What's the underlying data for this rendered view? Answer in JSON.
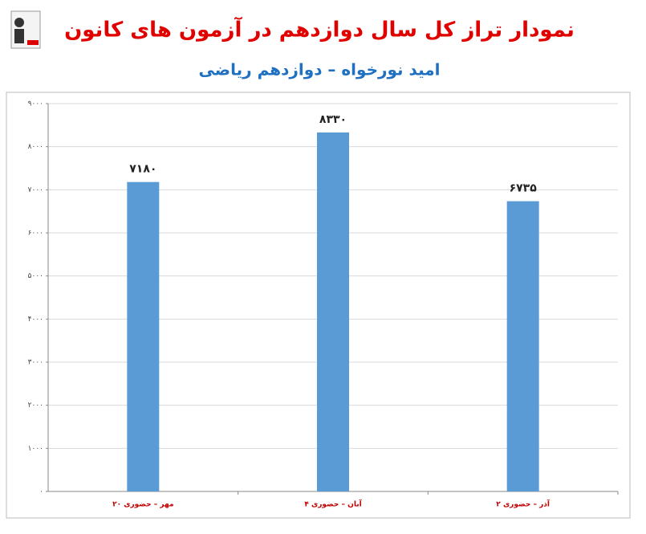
{
  "chart_data": {
    "type": "bar",
    "title": "نمودار تراز کل سال دوازدهم در آزمون های کانون",
    "subtitle": "امید نورخواه – دوازدهم ریاضی",
    "categories": [
      "۲۰ مهر – حضوری",
      "۴ آبان – حضوری",
      "۲ آذر – حضوری"
    ],
    "values": [
      7180,
      8330,
      6735
    ],
    "value_labels": [
      "۷۱۸۰",
      "۸۳۳۰",
      "۶۷۳۵"
    ],
    "color": "#5b9bd5",
    "ylim": [
      0,
      9000
    ],
    "yticks": [
      {
        "value": 0,
        "label": "۰"
      },
      {
        "value": 1000,
        "label": "۱۰۰۰"
      },
      {
        "value": 2000,
        "label": "۲۰۰۰"
      },
      {
        "value": 3000,
        "label": "۳۰۰۰"
      },
      {
        "value": 4000,
        "label": "۴۰۰۰"
      },
      {
        "value": 5000,
        "label": "۵۰۰۰"
      },
      {
        "value": 6000,
        "label": "۶۰۰۰"
      },
      {
        "value": 7000,
        "label": "۷۰۰۰"
      },
      {
        "value": 8000,
        "label": "۸۰۰۰"
      },
      {
        "value": 9000,
        "label": "۹۰۰۰"
      }
    ],
    "grid": true
  }
}
